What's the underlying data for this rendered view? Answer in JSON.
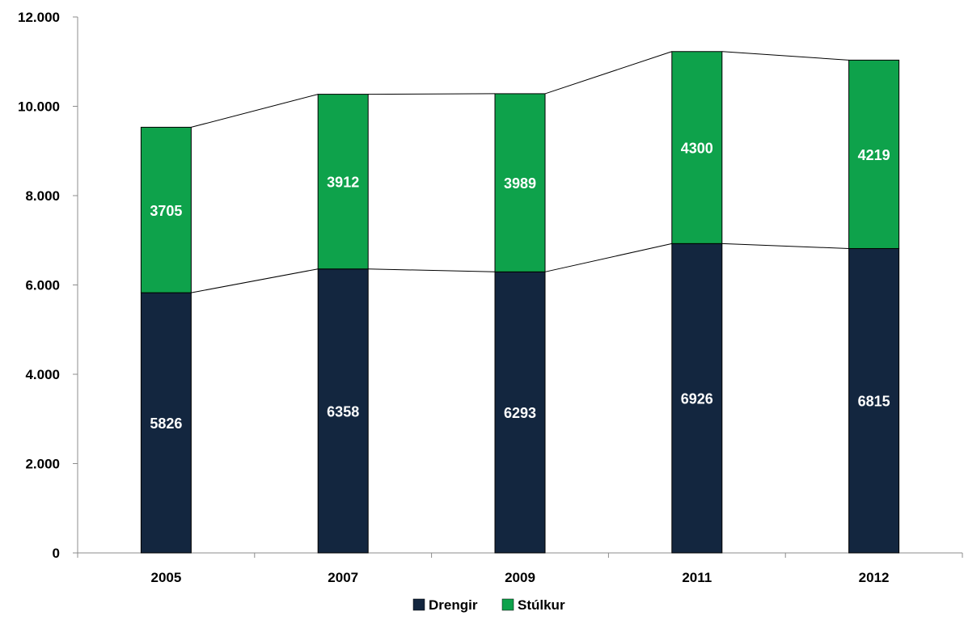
{
  "chart_data": {
    "type": "bar",
    "stacked": true,
    "categories": [
      "2005",
      "2007",
      "2009",
      "2011",
      "2012"
    ],
    "series": [
      {
        "name": "Drengir",
        "values": [
          5826,
          6358,
          6293,
          6926,
          6815
        ],
        "color": "#13263F"
      },
      {
        "name": "Stúlkur",
        "values": [
          3705,
          3912,
          3989,
          4300,
          4219
        ],
        "color": "#0EA24B"
      }
    ],
    "ylim": [
      0,
      12000
    ],
    "yticks": [
      0,
      2000,
      4000,
      6000,
      8000,
      10000,
      12000
    ],
    "ytick_labels": [
      "0",
      "2.000",
      "4.000",
      "6.000",
      "8.000",
      "10.000",
      "12.000"
    ],
    "series_lines": true,
    "grid": false,
    "legend_position": "bottom",
    "title": "",
    "xlabel": "",
    "ylabel": ""
  }
}
